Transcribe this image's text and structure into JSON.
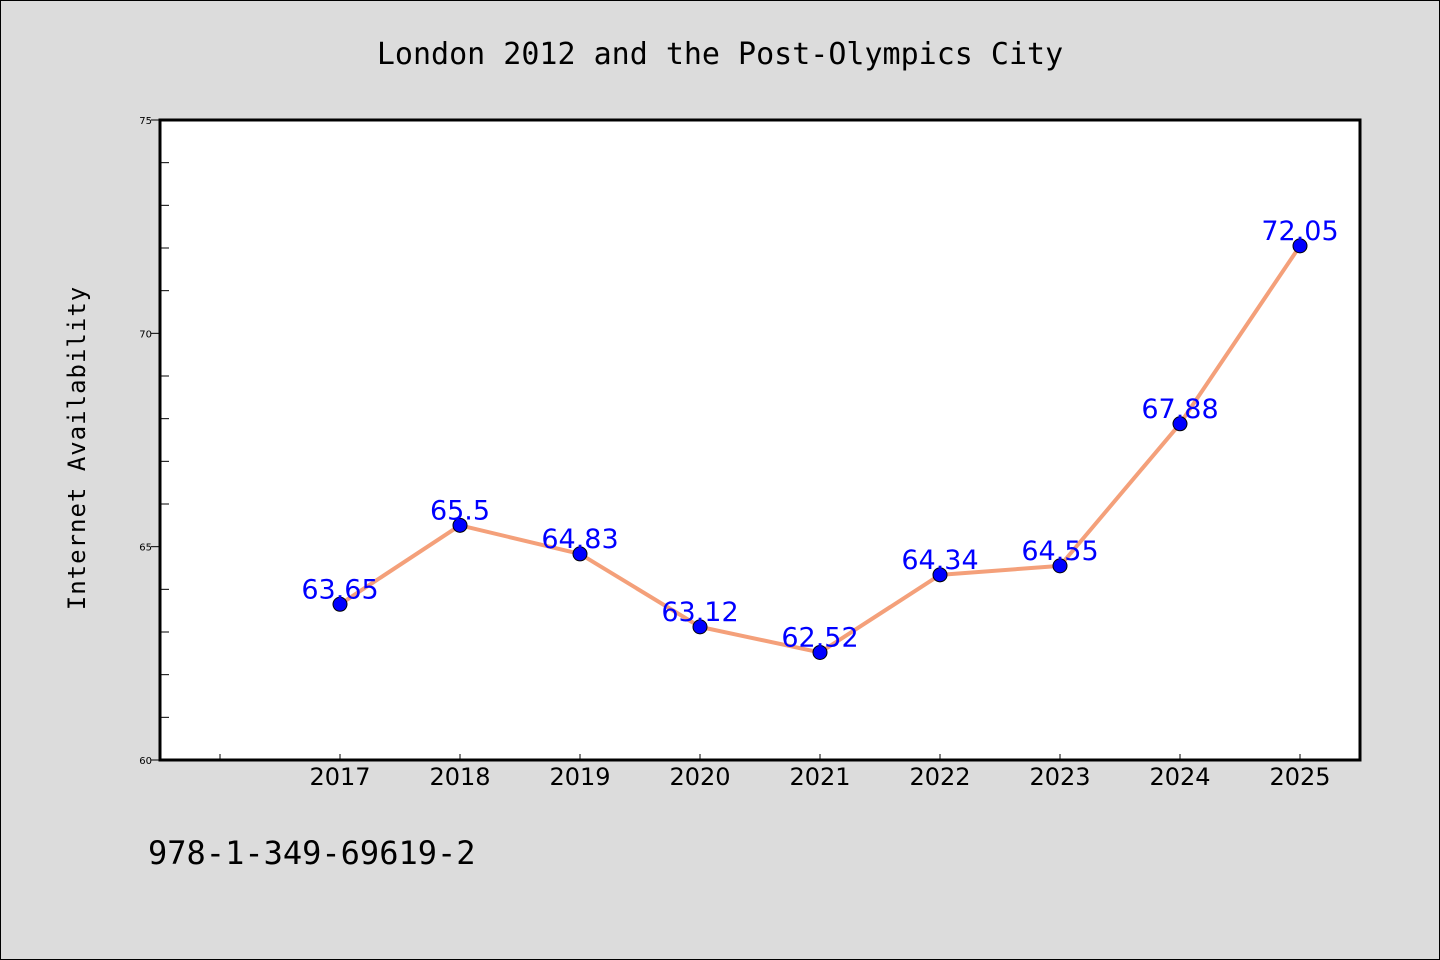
{
  "chart_data": {
    "type": "line",
    "title": "London 2012 and the Post-Olympics City",
    "xlabel": "",
    "ylabel": "Internet Availability",
    "categories": [
      "2017",
      "2018",
      "2019",
      "2020",
      "2021",
      "2022",
      "2023",
      "2024",
      "2025"
    ],
    "series": [
      {
        "values": [
          63.65,
          65.5,
          64.83,
          63.12,
          62.52,
          64.34,
          64.55,
          67.88,
          72.05
        ],
        "labels": [
          "63.65",
          "65.5",
          "64.83",
          "63.12",
          "62.52",
          "64.34",
          "64.55",
          "67.88",
          "72.05"
        ]
      }
    ],
    "ylim": [
      60,
      75
    ],
    "yticks": [
      "60",
      "65",
      "70",
      "75"
    ],
    "grid": false,
    "legend": "none",
    "line_color": "#f4a07a",
    "marker_color": "#0000ff",
    "label_color": "#0000ff",
    "background_color": "#dcdcdc",
    "plot_background": "#ffffff"
  },
  "footer": {
    "isbn": "978-1-349-69619-2"
  }
}
